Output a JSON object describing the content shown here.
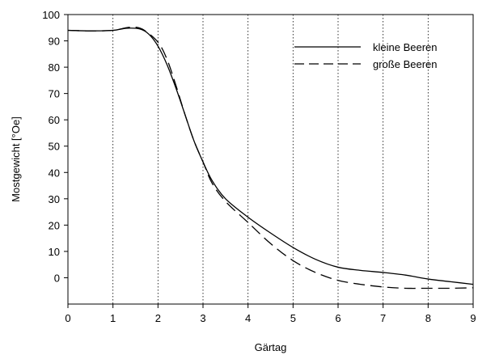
{
  "chart_data": {
    "type": "line",
    "title": "",
    "xlabel": "Gärtag",
    "ylabel": "Mostgewicht [°Oe]",
    "xlim": [
      0,
      9
    ],
    "ylim": [
      -10,
      100
    ],
    "x_ticks": [
      0,
      1,
      2,
      3,
      4,
      5,
      6,
      7,
      8,
      9
    ],
    "y_ticks": [
      0,
      10,
      20,
      30,
      40,
      50,
      60,
      70,
      80,
      90,
      100
    ],
    "x_tick_labels": [
      "0",
      "1",
      "2",
      "3",
      "4",
      "5",
      "6",
      "7",
      "8",
      "9"
    ],
    "y_tick_labels": [
      "0",
      "10",
      "20",
      "30",
      "40",
      "50",
      "60",
      "70",
      "80",
      "90",
      "100"
    ],
    "vertical_gridlines": [
      1,
      2,
      3,
      4,
      5,
      6,
      7,
      8
    ],
    "grid": "vertical dotted",
    "legend_position": "top-right",
    "series": [
      {
        "name": "kleine Beeren",
        "style": "solid",
        "color": "#000000",
        "x": [
          0,
          0.5,
          1.0,
          1.3,
          1.6,
          1.8,
          2.0,
          2.2,
          2.4,
          2.6,
          2.8,
          3.0,
          3.2,
          3.5,
          4.0,
          4.5,
          5.0,
          5.5,
          6.0,
          6.5,
          7.0,
          7.5,
          8.0,
          8.5,
          9.0
        ],
        "values": [
          94,
          93.8,
          94,
          94.8,
          94.5,
          92.5,
          88,
          81,
          72,
          62,
          52,
          44,
          37,
          30,
          23,
          17,
          11.5,
          7,
          4,
          2.8,
          2,
          1,
          -0.5,
          -1.5,
          -2.5
        ]
      },
      {
        "name": "große Beeren",
        "style": "dashed",
        "color": "#000000",
        "x": [
          0,
          0.5,
          1.0,
          1.3,
          1.5,
          1.7,
          2.0,
          2.2,
          2.4,
          2.6,
          2.8,
          3.0,
          3.2,
          3.5,
          4.0,
          4.5,
          5.0,
          5.5,
          6.0,
          6.5,
          7.0,
          7.5,
          8.0,
          8.5,
          9.0
        ],
        "values": [
          94,
          93.8,
          94,
          95,
          95.2,
          94,
          89.5,
          83,
          73,
          62,
          52,
          44,
          36,
          29,
          21,
          13,
          6.5,
          2,
          -1,
          -2.5,
          -3.5,
          -4,
          -4,
          -4,
          -3.8
        ]
      }
    ]
  }
}
